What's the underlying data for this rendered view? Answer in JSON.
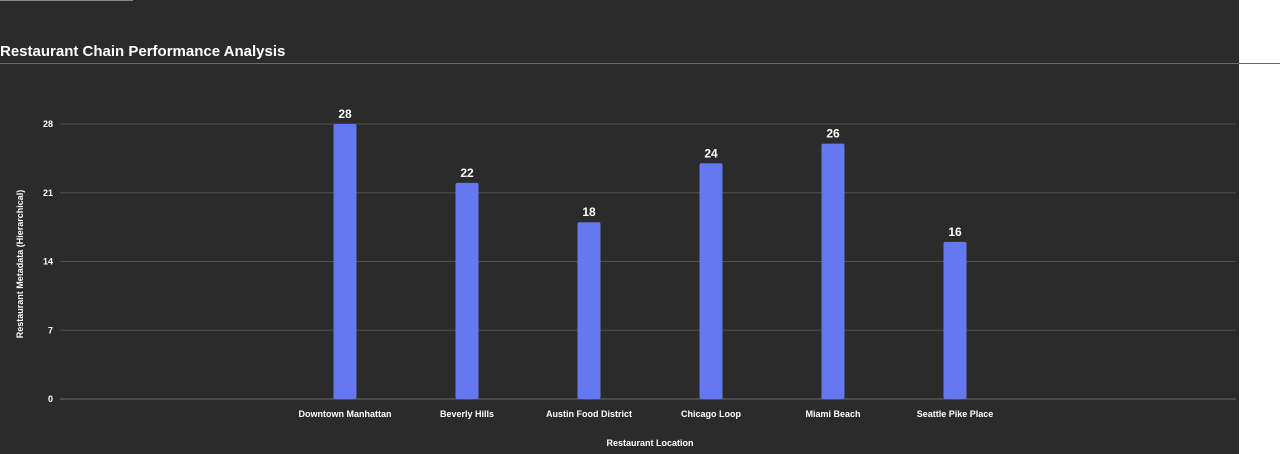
{
  "title": "Restaurant Chain Performance Analysis",
  "chart_data": {
    "type": "bar",
    "title": "Restaurant Chain Performance Analysis",
    "xlabel": "Restaurant Location",
    "ylabel": "Restaurant Metadata (Hierarchical)",
    "categories": [
      "Downtown Manhattan",
      "Beverly Hills",
      "Austin Food District",
      "Chicago Loop",
      "Miami Beach",
      "Seattle Pike Place"
    ],
    "values": [
      28,
      22,
      18,
      24,
      26,
      16
    ],
    "ylim": [
      0,
      28
    ],
    "yticks": [
      0,
      7,
      14,
      21,
      28
    ],
    "grid": true,
    "legend": "none",
    "colors": {
      "bar": "#6478f0",
      "background": "#2b2b2b",
      "grid": "#505050",
      "text": "#ffffff"
    }
  }
}
